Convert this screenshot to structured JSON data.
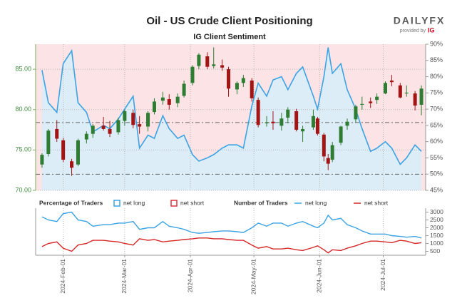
{
  "logo": {
    "text": "DAILYFX",
    "sub": "provided by",
    "brand": "IG"
  },
  "chart_data": [
    {
      "type": "candlestick",
      "title": "Oil - US Crude Client Positioning",
      "subtitle": "IG Client Sentiment",
      "legend_title": "Percentage of Traders",
      "x": [
        "2024-01-22",
        "2024-01-25",
        "2024-01-29",
        "2024-02-01",
        "2024-02-05",
        "2024-02-08",
        "2024-02-12",
        "2024-02-15",
        "2024-02-20",
        "2024-02-23",
        "2024-02-27",
        "2024-03-01",
        "2024-03-05",
        "2024-03-08",
        "2024-03-12",
        "2024-03-15",
        "2024-03-19",
        "2024-03-22",
        "2024-03-26",
        "2024-03-29",
        "2024-04-02",
        "2024-04-05",
        "2024-04-09",
        "2024-04-12",
        "2024-04-16",
        "2024-04-19",
        "2024-04-23",
        "2024-04-26",
        "2024-04-30",
        "2024-05-03",
        "2024-05-07",
        "2024-05-10",
        "2024-05-14",
        "2024-05-17",
        "2024-05-21",
        "2024-05-24",
        "2024-05-29",
        "2024-05-31",
        "2024-06-03",
        "2024-06-05",
        "2024-06-07",
        "2024-06-11",
        "2024-06-14",
        "2024-06-18",
        "2024-06-21",
        "2024-06-25",
        "2024-06-28",
        "2024-07-02",
        "2024-07-05",
        "2024-07-09",
        "2024-07-12",
        "2024-07-16",
        "2024-07-19"
      ],
      "open": [
        73.2,
        74.5,
        77.6,
        76.2,
        73.6,
        73.2,
        76.3,
        77.0,
        78.0,
        77.6,
        77.2,
        78.6,
        79.6,
        78.2,
        77.9,
        79.7,
        81.1,
        81.3,
        80.8,
        81.7,
        83.3,
        85.4,
        86.6,
        85.4,
        85.5,
        85.0,
        82.5,
        83.3,
        83.6,
        81.2,
        78.3,
        78.5,
        78.0,
        79.0,
        79.8,
        77.3,
        77.8,
        78.9,
        76.9,
        74.0,
        73.8,
        75.9,
        78.0,
        78.8,
        80.6,
        81.0,
        81.2,
        82.0,
        83.6,
        83.0,
        82.0,
        82.0,
        80.6
      ],
      "high": [
        74.6,
        77.6,
        78.7,
        76.5,
        73.9,
        76.4,
        77.3,
        78.2,
        79.1,
        78.6,
        79.0,
        80.0,
        80.0,
        79.2,
        79.8,
        81.4,
        82.2,
        81.9,
        82.0,
        83.6,
        85.5,
        87.0,
        87.1,
        87.7,
        86.2,
        85.3,
        83.5,
        84.3,
        83.9,
        81.5,
        79.2,
        79.8,
        79.6,
        80.3,
        80.1,
        78.0,
        80.0,
        79.1,
        77.1,
        74.5,
        76.0,
        78.0,
        78.9,
        80.6,
        81.6,
        81.5,
        82.0,
        83.5,
        84.3,
        83.3,
        83.0,
        82.3,
        83.0
      ],
      "low": [
        72.8,
        74.2,
        76.0,
        73.5,
        71.8,
        73.0,
        75.8,
        76.5,
        77.4,
        76.6,
        76.9,
        78.0,
        77.7,
        77.0,
        77.3,
        79.4,
        80.6,
        80.0,
        80.3,
        81.5,
        83.0,
        85.0,
        85.0,
        85.1,
        84.8,
        81.6,
        81.9,
        82.8,
        81.0,
        77.8,
        77.9,
        77.5,
        77.4,
        78.3,
        77.3,
        76.0,
        77.5,
        76.8,
        73.6,
        72.5,
        73.5,
        75.6,
        77.5,
        78.4,
        80.0,
        80.2,
        80.7,
        81.9,
        82.9,
        81.4,
        81.6,
        79.9,
        79.3
      ],
      "close": [
        74.4,
        77.4,
        76.4,
        73.8,
        72.8,
        76.2,
        77.0,
        78.0,
        77.6,
        77.0,
        78.7,
        79.8,
        78.1,
        77.9,
        79.6,
        81.0,
        81.5,
        80.6,
        81.6,
        83.2,
        85.3,
        86.8,
        85.3,
        85.6,
        85.2,
        82.6,
        83.3,
        83.9,
        81.4,
        78.1,
        78.4,
        78.3,
        78.9,
        80.0,
        77.5,
        77.6,
        79.2,
        77.0,
        74.2,
        73.3,
        75.6,
        77.9,
        78.5,
        80.4,
        80.7,
        80.8,
        81.6,
        83.3,
        83.4,
        81.5,
        82.1,
        80.5,
        82.6
      ],
      "up_color": "#2e7d32",
      "down_color": "#a31515",
      "series": [
        {
          "name": "net long",
          "color": "#3ba3e3",
          "area_color": "#dcedf8",
          "legend_color": "#3ba3e3",
          "axis": "y2",
          "values": [
            82,
            72,
            69,
            84,
            88,
            72,
            69,
            63,
            65,
            64,
            67,
            70,
            74,
            58,
            62,
            61,
            68,
            64,
            61,
            62,
            56,
            54,
            55,
            56,
            58,
            59,
            59,
            58,
            71,
            78,
            74,
            79,
            80,
            76,
            81,
            83,
            74,
            70,
            80,
            89,
            81,
            84,
            76,
            70,
            64,
            57,
            58,
            60,
            58,
            53,
            55,
            59,
            57
          ]
        }
      ],
      "short_area": {
        "name": "net short",
        "color": "#fbe3e6",
        "legend_color": "#d9343a"
      },
      "hlines": [
        78.4,
        72.0
      ],
      "xlim": [
        "2024-01-19",
        "2024-07-21"
      ],
      "xticks": [
        "2024-02-01",
        "2024-03-01",
        "2024-04-01",
        "2024-05-01",
        "2024-06-01",
        "2024-07-01"
      ],
      "ylim": [
        70,
        88.1
      ],
      "yticks": [
        {
          "value": 70,
          "label": "70.00"
        },
        {
          "value": 75,
          "label": "75.00"
        },
        {
          "value": 80,
          "label": "80.00"
        },
        {
          "value": 85,
          "label": "85.00"
        }
      ],
      "y2lim": [
        45,
        90
      ],
      "y2ticks": [
        {
          "value": 45,
          "label": "45%"
        },
        {
          "value": 50,
          "label": "50%"
        },
        {
          "value": 55,
          "label": "55%"
        },
        {
          "value": 60,
          "label": "60%"
        },
        {
          "value": 65,
          "label": "65%"
        },
        {
          "value": 70,
          "label": "70%"
        },
        {
          "value": 75,
          "label": "75%"
        },
        {
          "value": 80,
          "label": "80%"
        },
        {
          "value": 85,
          "label": "85%"
        },
        {
          "value": 90,
          "label": "90%"
        }
      ],
      "grid": true
    },
    {
      "type": "line",
      "legend_title": "Number of Traders",
      "x": [
        "2024-01-22",
        "2024-01-25",
        "2024-01-29",
        "2024-02-01",
        "2024-02-05",
        "2024-02-08",
        "2024-02-12",
        "2024-02-15",
        "2024-02-20",
        "2024-02-23",
        "2024-02-27",
        "2024-03-01",
        "2024-03-05",
        "2024-03-08",
        "2024-03-12",
        "2024-03-15",
        "2024-03-19",
        "2024-03-22",
        "2024-03-26",
        "2024-03-29",
        "2024-04-02",
        "2024-04-05",
        "2024-04-09",
        "2024-04-12",
        "2024-04-16",
        "2024-04-19",
        "2024-04-23",
        "2024-04-26",
        "2024-04-30",
        "2024-05-03",
        "2024-05-07",
        "2024-05-10",
        "2024-05-14",
        "2024-05-17",
        "2024-05-21",
        "2024-05-24",
        "2024-05-29",
        "2024-05-31",
        "2024-06-03",
        "2024-06-05",
        "2024-06-07",
        "2024-06-11",
        "2024-06-14",
        "2024-06-18",
        "2024-06-21",
        "2024-06-25",
        "2024-06-28",
        "2024-07-02",
        "2024-07-05",
        "2024-07-09",
        "2024-07-12",
        "2024-07-16",
        "2024-07-19"
      ],
      "series": [
        {
          "name": "net long",
          "color": "#3ba3e3",
          "values": [
            2700,
            2500,
            2400,
            2900,
            3000,
            2500,
            2400,
            2100,
            2200,
            2200,
            2300,
            2300,
            2400,
            1900,
            2000,
            2000,
            2400,
            2100,
            2000,
            1900,
            1700,
            1650,
            1700,
            1750,
            1800,
            1800,
            1750,
            1700,
            2000,
            2300,
            2100,
            2300,
            2300,
            2100,
            2300,
            2400,
            2100,
            2000,
            2300,
            2800,
            2500,
            2600,
            2200,
            2000,
            1800,
            1600,
            1600,
            1600,
            1500,
            1450,
            1400,
            1450,
            1350
          ]
        },
        {
          "name": "net short",
          "color": "#d62728",
          "values": [
            800,
            1000,
            1100,
            700,
            500,
            900,
            1000,
            1200,
            1200,
            1150,
            1100,
            1000,
            900,
            1300,
            1200,
            1250,
            1100,
            1150,
            1200,
            1250,
            1300,
            1350,
            1350,
            1300,
            1300,
            1250,
            1200,
            1200,
            900,
            700,
            800,
            650,
            650,
            700,
            600,
            550,
            750,
            850,
            600,
            400,
            600,
            550,
            700,
            850,
            1000,
            1150,
            1150,
            1100,
            1050,
            1200,
            1150,
            1000,
            1050
          ]
        }
      ],
      "xlim": [
        "2024-01-19",
        "2024-07-21"
      ],
      "xticks": [
        {
          "value": "2024-02-01",
          "label": "2024-Feb-01"
        },
        {
          "value": "2024-03-01",
          "label": "2024-Mar-01"
        },
        {
          "value": "2024-04-01",
          "label": "2024-Apr-01"
        },
        {
          "value": "2024-05-01",
          "label": "2024-May-01"
        },
        {
          "value": "2024-06-01",
          "label": "2024-Jun-01"
        },
        {
          "value": "2024-07-01",
          "label": "2024-Jul-01"
        }
      ],
      "ylim": [
        250,
        3250
      ],
      "yticks": [
        500,
        1000,
        1500,
        2000,
        2500,
        3000
      ],
      "grid": true
    }
  ]
}
